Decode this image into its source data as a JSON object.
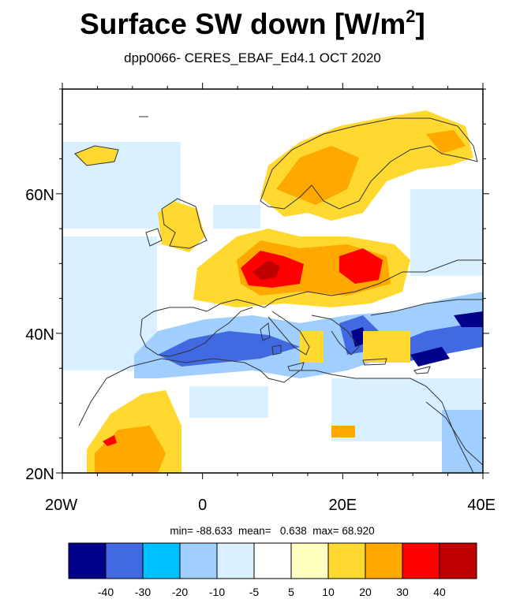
{
  "title_main": "Surface SW down [W/m",
  "title_sup": "2",
  "title_close": "]",
  "subtitle": "dpp0066- CERES_EBAF_Ed4.1  OCT 2020",
  "map": {
    "lon_range": [
      -20,
      40
    ],
    "lat_range": [
      20,
      75
    ],
    "y_ticks": [
      {
        "lat": 60,
        "label": "60N"
      },
      {
        "lat": 40,
        "label": "40N"
      },
      {
        "lat": 20,
        "label": "20N"
      }
    ],
    "x_ticks": [
      {
        "lon": -20,
        "label": "20W"
      },
      {
        "lon": 0,
        "label": "0"
      },
      {
        "lon": 20,
        "label": "20E"
      },
      {
        "lon": 40,
        "label": "40E"
      }
    ],
    "minor_y": [
      25,
      30,
      35,
      45,
      50,
      55,
      65,
      70,
      75
    ],
    "minor_x": [
      -15,
      -10,
      -5,
      5,
      10,
      15,
      25,
      30,
      35
    ]
  },
  "stats": {
    "text": "min= -88.633  mean=   0.638  max= 68.920"
  },
  "colorbar": {
    "colors": [
      "#00008b",
      "#4169e1",
      "#00bfff",
      "#a0cfff",
      "#d8f0ff",
      "#ffffff",
      "#ffffc0",
      "#ffd830",
      "#ffa800",
      "#ff0000",
      "#c00000"
    ],
    "labels": [
      "-40",
      "-30",
      "-20",
      "-10",
      "-5",
      "5",
      "10",
      "20",
      "30",
      "40"
    ]
  }
}
